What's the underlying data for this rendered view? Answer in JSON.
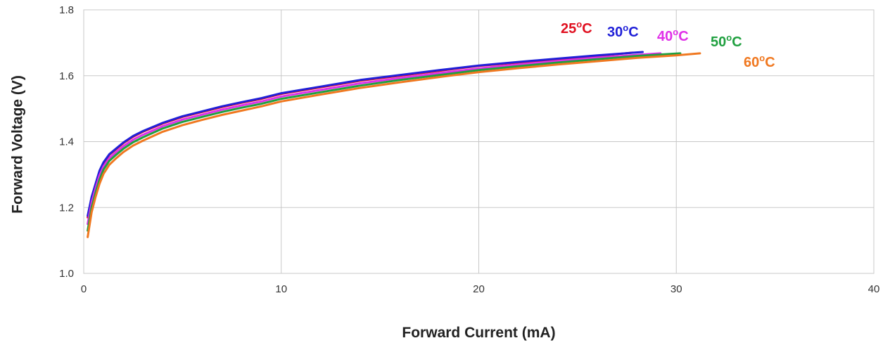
{
  "chart_data": {
    "type": "line",
    "xlabel": "Forward Current (mA)",
    "ylabel": "Forward Voltage (V)",
    "xlim": [
      0,
      40
    ],
    "ylim": [
      1.0,
      1.8
    ],
    "x_ticks": [
      "0",
      "10",
      "20",
      "30",
      "40"
    ],
    "y_ticks": [
      "1.0",
      "1.2",
      "1.4",
      "1.6",
      "1.8"
    ],
    "grid": true,
    "legend": "inline labels near line ends",
    "series": [
      {
        "name": "25°C",
        "color": "#e01020",
        "points": [
          [
            0.2,
            1.17
          ],
          [
            0.4,
            1.23
          ],
          [
            0.6,
            1.27
          ],
          [
            0.8,
            1.31
          ],
          [
            1.0,
            1.335
          ],
          [
            1.3,
            1.36
          ],
          [
            1.6,
            1.375
          ],
          [
            2.0,
            1.395
          ],
          [
            2.5,
            1.415
          ],
          [
            3,
            1.43
          ],
          [
            4,
            1.455
          ],
          [
            5,
            1.475
          ],
          [
            6,
            1.49
          ],
          [
            7,
            1.505
          ],
          [
            8,
            1.518
          ],
          [
            9,
            1.53
          ],
          [
            10,
            1.545
          ],
          [
            12,
            1.565
          ],
          [
            14,
            1.585
          ],
          [
            16,
            1.6
          ],
          [
            18,
            1.615
          ],
          [
            20,
            1.63
          ],
          [
            22,
            1.64
          ],
          [
            24,
            1.65
          ],
          [
            26,
            1.66
          ],
          [
            27.8,
            1.67
          ]
        ]
      },
      {
        "name": "30°C",
        "color": "#2020d8",
        "points": [
          [
            0.2,
            1.175
          ],
          [
            0.4,
            1.232
          ],
          [
            0.6,
            1.272
          ],
          [
            0.8,
            1.312
          ],
          [
            1.0,
            1.337
          ],
          [
            1.3,
            1.362
          ],
          [
            1.6,
            1.377
          ],
          [
            2.0,
            1.397
          ],
          [
            2.5,
            1.417
          ],
          [
            3,
            1.432
          ],
          [
            4,
            1.457
          ],
          [
            5,
            1.477
          ],
          [
            6,
            1.492
          ],
          [
            7,
            1.507
          ],
          [
            8,
            1.52
          ],
          [
            9,
            1.532
          ],
          [
            10,
            1.547
          ],
          [
            12,
            1.567
          ],
          [
            14,
            1.587
          ],
          [
            16,
            1.602
          ],
          [
            18,
            1.617
          ],
          [
            20,
            1.631
          ],
          [
            22,
            1.642
          ],
          [
            24,
            1.652
          ],
          [
            26,
            1.662
          ],
          [
            28.3,
            1.672
          ]
        ]
      },
      {
        "name": "40°C",
        "color": "#e030e8",
        "points": [
          [
            0.2,
            1.15
          ],
          [
            0.4,
            1.215
          ],
          [
            0.6,
            1.258
          ],
          [
            0.8,
            1.298
          ],
          [
            1.0,
            1.325
          ],
          [
            1.3,
            1.35
          ],
          [
            1.6,
            1.366
          ],
          [
            2.0,
            1.386
          ],
          [
            2.5,
            1.406
          ],
          [
            3,
            1.421
          ],
          [
            4,
            1.447
          ],
          [
            5,
            1.467
          ],
          [
            6,
            1.482
          ],
          [
            7,
            1.497
          ],
          [
            8,
            1.51
          ],
          [
            9,
            1.522
          ],
          [
            10,
            1.537
          ],
          [
            12,
            1.557
          ],
          [
            14,
            1.577
          ],
          [
            16,
            1.593
          ],
          [
            18,
            1.608
          ],
          [
            20,
            1.622
          ],
          [
            22,
            1.634
          ],
          [
            24,
            1.645
          ],
          [
            26,
            1.655
          ],
          [
            29.2,
            1.668
          ]
        ]
      },
      {
        "name": "50°C",
        "color": "#20a040",
        "points": [
          [
            0.2,
            1.13
          ],
          [
            0.4,
            1.2
          ],
          [
            0.6,
            1.245
          ],
          [
            0.8,
            1.285
          ],
          [
            1.0,
            1.315
          ],
          [
            1.3,
            1.342
          ],
          [
            1.6,
            1.358
          ],
          [
            2.0,
            1.378
          ],
          [
            2.5,
            1.398
          ],
          [
            3,
            1.413
          ],
          [
            4,
            1.44
          ],
          [
            5,
            1.46
          ],
          [
            6,
            1.475
          ],
          [
            7,
            1.49
          ],
          [
            8,
            1.503
          ],
          [
            9,
            1.515
          ],
          [
            10,
            1.53
          ],
          [
            12,
            1.55
          ],
          [
            14,
            1.57
          ],
          [
            16,
            1.587
          ],
          [
            18,
            1.602
          ],
          [
            20,
            1.617
          ],
          [
            22,
            1.629
          ],
          [
            24,
            1.64
          ],
          [
            26,
            1.65
          ],
          [
            28,
            1.66
          ],
          [
            30.2,
            1.668
          ]
        ]
      },
      {
        "name": "60°C",
        "color": "#f07820",
        "points": [
          [
            0.2,
            1.11
          ],
          [
            0.4,
            1.185
          ],
          [
            0.6,
            1.232
          ],
          [
            0.8,
            1.272
          ],
          [
            1.0,
            1.302
          ],
          [
            1.3,
            1.33
          ],
          [
            1.6,
            1.347
          ],
          [
            2.0,
            1.368
          ],
          [
            2.5,
            1.388
          ],
          [
            3,
            1.403
          ],
          [
            4,
            1.43
          ],
          [
            5,
            1.45
          ],
          [
            6,
            1.466
          ],
          [
            7,
            1.481
          ],
          [
            8,
            1.494
          ],
          [
            9,
            1.507
          ],
          [
            10,
            1.522
          ],
          [
            12,
            1.543
          ],
          [
            14,
            1.563
          ],
          [
            16,
            1.58
          ],
          [
            18,
            1.596
          ],
          [
            20,
            1.611
          ],
          [
            22,
            1.623
          ],
          [
            24,
            1.634
          ],
          [
            26,
            1.644
          ],
          [
            28,
            1.654
          ],
          [
            30,
            1.662
          ],
          [
            31.2,
            1.668
          ]
        ]
      }
    ]
  }
}
